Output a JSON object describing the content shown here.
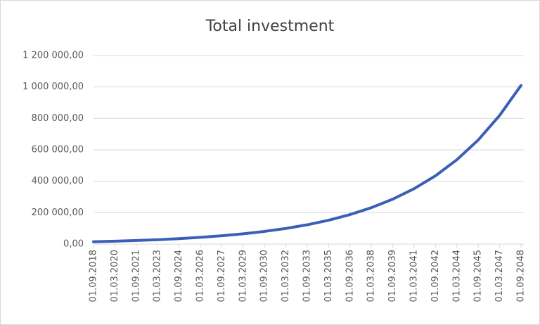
{
  "chart_data": {
    "type": "line",
    "title": "Total investment",
    "categories": [
      "01.09.2018",
      "01.03.2020",
      "01.09.2021",
      "01.03.2023",
      "01.09.2024",
      "01.03.2026",
      "01.09.2027",
      "01.03.2029",
      "01.09.2030",
      "01.03.2032",
      "01.09.2033",
      "01.03.2035",
      "01.09.2036",
      "01.03.2038",
      "01.09.2039",
      "01.03.2041",
      "01.09.2042",
      "01.03.2044",
      "01.09.2045",
      "01.03.2047",
      "01.09.2048"
    ],
    "series": [
      {
        "name": "Total investment",
        "color": "#3b5fb7",
        "values": [
          15000,
          18500,
          22900,
          28200,
          34800,
          43000,
          53000,
          65500,
          80800,
          99700,
          123000,
          152000,
          188000,
          232000,
          286000,
          353000,
          435000,
          537000,
          663000,
          819000,
          1010000
        ]
      }
    ],
    "ylim": [
      0,
      1200000
    ],
    "yticks": [
      {
        "value": 0,
        "label": "0,00"
      },
      {
        "value": 200000,
        "label": "200 000,00"
      },
      {
        "value": 400000,
        "label": "400 000,00"
      },
      {
        "value": 600000,
        "label": "600 000,00"
      },
      {
        "value": 800000,
        "label": "800 000,00"
      },
      {
        "value": 1000000,
        "label": "1 000 000,00"
      },
      {
        "value": 1200000,
        "label": "1 200 000,00"
      }
    ],
    "grid": true
  }
}
